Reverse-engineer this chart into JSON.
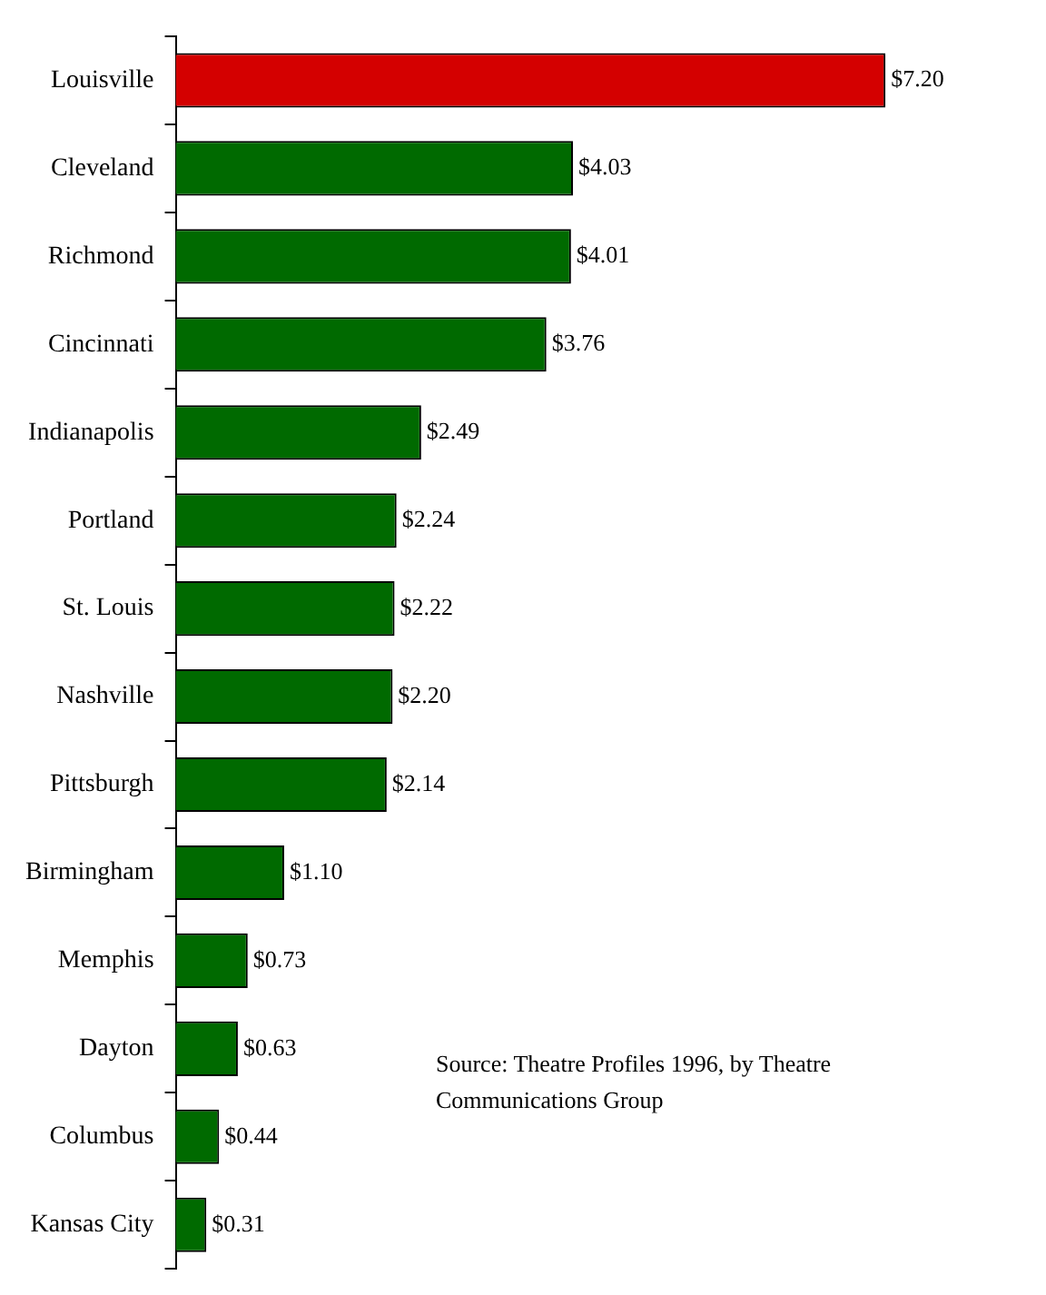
{
  "chart_data": {
    "type": "bar",
    "orientation": "horizontal",
    "categories": [
      "Louisville",
      "Cleveland",
      "Richmond",
      "Cincinnati",
      "Indianapolis",
      "Portland",
      "St. Louis",
      "Nashville",
      "Pittsburgh",
      "Birmingham",
      "Memphis",
      "Dayton",
      "Columbus",
      "Kansas City"
    ],
    "values": [
      7.2,
      4.03,
      4.01,
      3.76,
      2.49,
      2.24,
      2.22,
      2.2,
      2.14,
      1.1,
      0.73,
      0.63,
      0.44,
      0.31
    ],
    "value_labels": [
      "$7.20",
      "$4.03",
      "$4.01",
      "$3.76",
      "$2.49",
      "$2.24",
      "$2.22",
      "$2.20",
      "$2.14",
      "$1.10",
      "$0.73",
      "$0.63",
      "$0.44",
      "$0.31"
    ],
    "colors": [
      "#d40000",
      "#006a00",
      "#006a00",
      "#006a00",
      "#006a00",
      "#006a00",
      "#006a00",
      "#006a00",
      "#006a00",
      "#006a00",
      "#006a00",
      "#006a00",
      "#006a00",
      "#006a00"
    ],
    "annotations": [
      "Source: Theatre Profiles 1996, by Theatre Communications Group"
    ],
    "legend": false,
    "grid": false
  }
}
